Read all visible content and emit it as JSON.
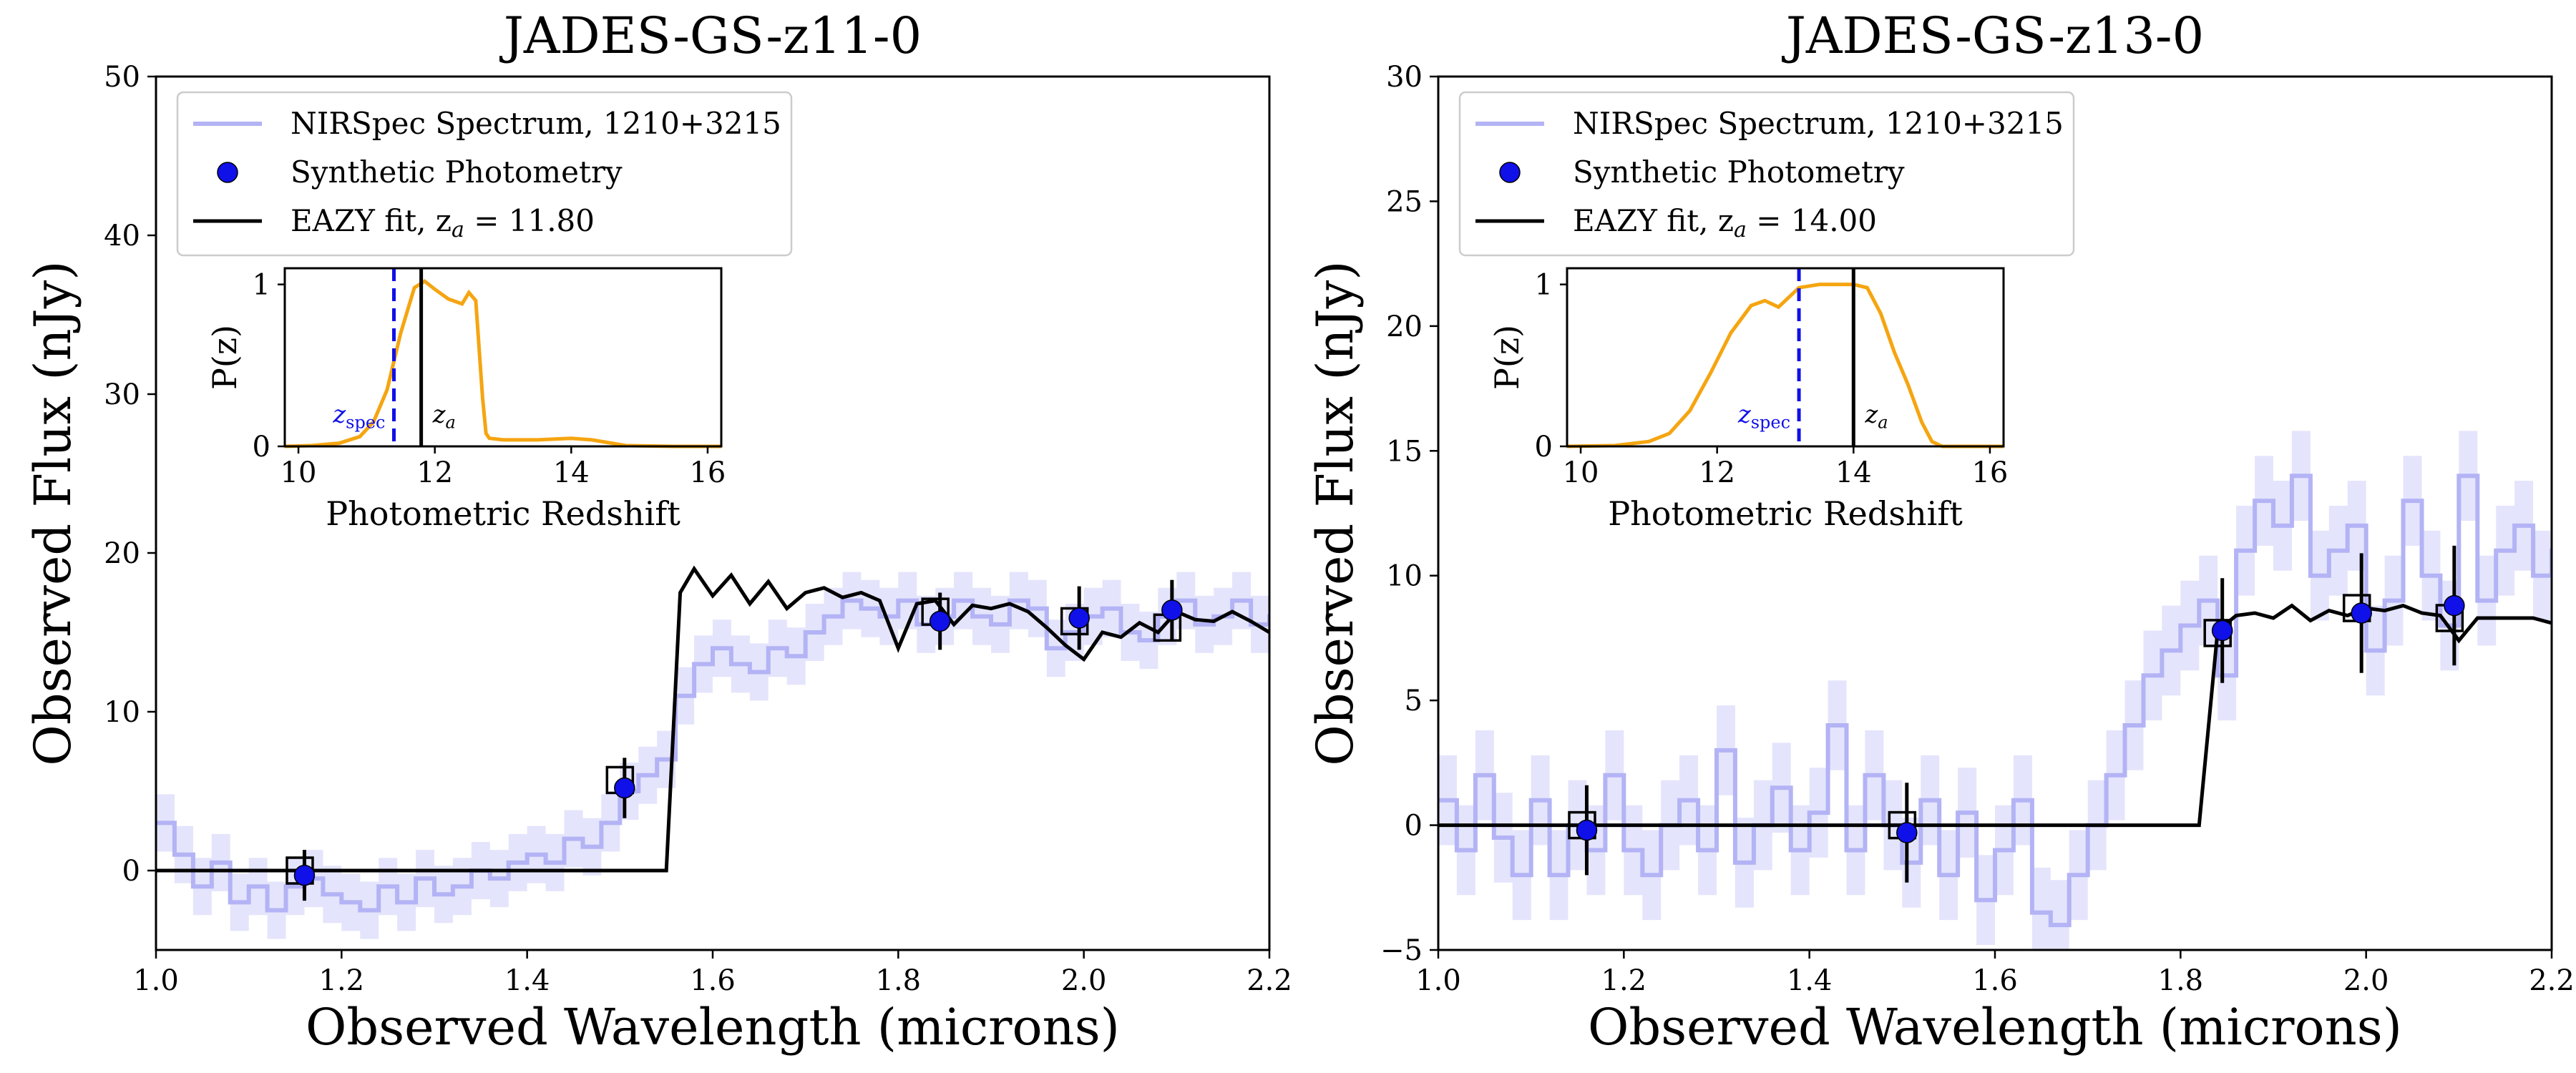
{
  "chart_data": [
    {
      "type": "line",
      "title": "JADES-GS-z11-0",
      "xlabel": "Observed Wavelength (microns)",
      "ylabel": "Observed Flux (nJy)",
      "xlim": [
        1.0,
        2.2
      ],
      "ylim": [
        -5,
        50
      ],
      "xticks": [
        1.0,
        1.2,
        1.4,
        1.6,
        1.8,
        2.0,
        2.2
      ],
      "xtick_labels": [
        "1.0",
        "1.2",
        "1.4",
        "1.6",
        "1.8",
        "2.0",
        "2.2"
      ],
      "yticks": [
        0,
        10,
        20,
        30,
        40,
        50
      ],
      "ytick_labels": [
        "0",
        "10",
        "20",
        "30",
        "40",
        "50"
      ],
      "legend": {
        "position": "top-left",
        "entries": [
          "NIRSpec Spectrum, 1210+3215",
          "Synthetic Photometry",
          "EAZY fit, z_a = 11.80"
        ]
      },
      "series": [
        {
          "name": "NIRSpec Spectrum, 1210+3215",
          "color": "#b3b3f5",
          "x": [
            1.0,
            1.02,
            1.04,
            1.06,
            1.08,
            1.1,
            1.12,
            1.14,
            1.16,
            1.18,
            1.2,
            1.22,
            1.24,
            1.26,
            1.28,
            1.3,
            1.32,
            1.34,
            1.36,
            1.38,
            1.4,
            1.42,
            1.44,
            1.46,
            1.48,
            1.5,
            1.52,
            1.54,
            1.56,
            1.58,
            1.6,
            1.62,
            1.64,
            1.66,
            1.68,
            1.7,
            1.72,
            1.74,
            1.76,
            1.78,
            1.8,
            1.82,
            1.84,
            1.86,
            1.88,
            1.9,
            1.92,
            1.94,
            1.96,
            1.98,
            2.0,
            2.02,
            2.04,
            2.06,
            2.08,
            2.1,
            2.12,
            2.14,
            2.16,
            2.18,
            2.2
          ],
          "y": [
            3,
            1,
            -1,
            0.5,
            -2,
            -1,
            -2.5,
            -1,
            -0.5,
            -1.5,
            -2,
            -2.5,
            -1,
            -2,
            -0.5,
            -1.5,
            -1,
            0,
            -0.5,
            0.5,
            1,
            0.5,
            2,
            1.5,
            3,
            5,
            6,
            7,
            11,
            13,
            14,
            13,
            12.5,
            14,
            13.5,
            15,
            16,
            17,
            16.5,
            16,
            17,
            15.5,
            16,
            17,
            16,
            15.5,
            17,
            16.5,
            14,
            15,
            16,
            16.5,
            15,
            14.5,
            16,
            17,
            15.5,
            16,
            17,
            15.5,
            16
          ]
        },
        {
          "name": "EAZY fit, z_a = 11.80",
          "color": "#000000",
          "x": [
            1.0,
            1.55,
            1.565,
            1.58,
            1.6,
            1.62,
            1.64,
            1.66,
            1.68,
            1.7,
            1.72,
            1.74,
            1.76,
            1.78,
            1.8,
            1.82,
            1.84,
            1.86,
            1.88,
            1.9,
            1.92,
            1.94,
            1.96,
            1.98,
            2.0,
            2.02,
            2.04,
            2.06,
            2.08,
            2.1,
            2.12,
            2.14,
            2.16,
            2.18,
            2.2
          ],
          "y": [
            0,
            0,
            17.5,
            19,
            17.3,
            18.6,
            16.8,
            18.2,
            16.5,
            17.5,
            17.8,
            17.2,
            17.5,
            17,
            14,
            16.8,
            17,
            15.5,
            16.7,
            16.5,
            16.8,
            16.3,
            15.3,
            14.2,
            13.3,
            15,
            14.7,
            15.6,
            15,
            16.3,
            15.8,
            15.7,
            16.3,
            15.7,
            15
          ]
        }
      ],
      "synthetic_photometry": {
        "x": [
          1.16,
          1.505,
          1.845,
          1.995,
          2.095
        ],
        "y": [
          -0.3,
          5.2,
          15.7,
          15.9,
          16.4
        ],
        "yerr": [
          1.6,
          1.9,
          1.8,
          2.0,
          1.9
        ]
      },
      "eazy_boxes": {
        "x": [
          1.155,
          1.5,
          1.84,
          1.99,
          2.09
        ],
        "y": [
          0,
          5.7,
          16.3,
          15.7,
          15.3
        ]
      },
      "inset": {
        "xlabel": "Photometric Redshift",
        "ylabel": "P(z)",
        "xlim": [
          9.8,
          16.2
        ],
        "ylim": [
          0,
          1.1
        ],
        "xticks": [
          10,
          12,
          14,
          16
        ],
        "xtick_labels": [
          "10",
          "12",
          "14",
          "16"
        ],
        "yticks": [
          0,
          1
        ],
        "ytick_labels": [
          "0",
          "1"
        ],
        "z_spec": 11.4,
        "z_a": 11.8,
        "z_spec_label": "z",
        "z_spec_sub": "spec",
        "z_a_label": "z",
        "z_a_sub": "a",
        "pz": {
          "color": "#f5a511",
          "x": [
            9.8,
            10.2,
            10.6,
            10.9,
            11.1,
            11.3,
            11.5,
            11.7,
            11.85,
            12.0,
            12.2,
            12.4,
            12.5,
            12.6,
            12.7,
            12.75,
            12.8,
            13.0,
            13.5,
            14.0,
            14.3,
            14.8,
            15.5,
            16.2
          ],
          "y": [
            0,
            0.005,
            0.02,
            0.06,
            0.15,
            0.35,
            0.7,
            0.98,
            1.02,
            0.97,
            0.91,
            0.88,
            0.95,
            0.9,
            0.3,
            0.08,
            0.05,
            0.04,
            0.04,
            0.05,
            0.04,
            0.005,
            0,
            0
          ]
        }
      }
    },
    {
      "type": "line",
      "title": "JADES-GS-z13-0",
      "xlabel": "Observed Wavelength (microns)",
      "ylabel": "Observed Flux (nJy)",
      "xlim": [
        1.0,
        2.2
      ],
      "ylim": [
        -5,
        30
      ],
      "xticks": [
        1.0,
        1.2,
        1.4,
        1.6,
        1.8,
        2.0,
        2.2
      ],
      "xtick_labels": [
        "1.0",
        "1.2",
        "1.4",
        "1.6",
        "1.8",
        "2.0",
        "2.2"
      ],
      "yticks": [
        -5,
        0,
        5,
        10,
        15,
        20,
        25,
        30
      ],
      "ytick_labels": [
        "−5",
        "0",
        "5",
        "10",
        "15",
        "20",
        "25",
        "30"
      ],
      "legend": {
        "position": "top-left",
        "entries": [
          "NIRSpec Spectrum, 1210+3215",
          "Synthetic Photometry",
          "EAZY fit, z_a = 14.00"
        ]
      },
      "series": [
        {
          "name": "NIRSpec Spectrum, 1210+3215",
          "color": "#b3b3f5",
          "x": [
            1.0,
            1.02,
            1.04,
            1.06,
            1.08,
            1.1,
            1.12,
            1.14,
            1.16,
            1.18,
            1.2,
            1.22,
            1.24,
            1.26,
            1.28,
            1.3,
            1.32,
            1.34,
            1.36,
            1.38,
            1.4,
            1.42,
            1.44,
            1.46,
            1.48,
            1.5,
            1.52,
            1.54,
            1.56,
            1.58,
            1.6,
            1.62,
            1.64,
            1.66,
            1.68,
            1.7,
            1.72,
            1.74,
            1.76,
            1.78,
            1.8,
            1.82,
            1.84,
            1.86,
            1.88,
            1.9,
            1.92,
            1.94,
            1.96,
            1.98,
            2.0,
            2.02,
            2.04,
            2.06,
            2.08,
            2.1,
            2.12,
            2.14,
            2.16,
            2.18,
            2.2
          ],
          "y": [
            1,
            -1,
            2,
            -0.5,
            -2,
            1,
            -2,
            0,
            -1,
            2,
            -1,
            -2,
            0,
            1,
            -1,
            3,
            -1.5,
            0,
            1.5,
            -1,
            0.5,
            4,
            -1,
            2,
            0,
            -1.5,
            1,
            -2,
            0.5,
            -3,
            -1,
            1,
            -3.5,
            -4,
            -2,
            0,
            2,
            4,
            6,
            7,
            8,
            9,
            6,
            11,
            13,
            12,
            14,
            10,
            11,
            12,
            7,
            9,
            13,
            10,
            8,
            14,
            9,
            11,
            12,
            10,
            11
          ]
        },
        {
          "name": "EAZY fit, z_a = 14.00",
          "color": "#000000",
          "x": [
            1.0,
            1.82,
            1.84,
            1.86,
            1.88,
            1.9,
            1.92,
            1.94,
            1.96,
            1.98,
            2.0,
            2.02,
            2.04,
            2.06,
            2.08,
            2.1,
            2.12,
            2.14,
            2.16,
            2.18,
            2.2
          ],
          "y": [
            0,
            0,
            7.8,
            8.4,
            8.5,
            8.3,
            8.8,
            8.2,
            8.6,
            8.4,
            8.7,
            8.6,
            8.8,
            8.5,
            8.4,
            7.4,
            8.3,
            8.3,
            8.3,
            8.3,
            8.1
          ]
        }
      ],
      "synthetic_photometry": {
        "x": [
          1.16,
          1.505,
          1.845,
          1.995,
          2.095
        ],
        "y": [
          -0.2,
          -0.3,
          7.8,
          8.5,
          8.8
        ],
        "yerr": [
          1.8,
          2.0,
          2.1,
          2.4,
          2.4
        ]
      },
      "eazy_boxes": {
        "x": [
          1.155,
          1.5,
          1.84,
          1.99,
          2.09
        ],
        "y": [
          0,
          0,
          7.7,
          8.7,
          8.3
        ]
      },
      "inset": {
        "xlabel": "Photometric Redshift",
        "ylabel": "P(z)",
        "xlim": [
          9.8,
          16.2
        ],
        "ylim": [
          0,
          1.1
        ],
        "xticks": [
          10,
          12,
          14,
          16
        ],
        "xtick_labels": [
          "10",
          "12",
          "14",
          "16"
        ],
        "yticks": [
          0,
          1
        ],
        "ytick_labels": [
          "0",
          "1"
        ],
        "z_spec": 13.2,
        "z_a": 14.0,
        "z_spec_label": "z",
        "z_spec_sub": "spec",
        "z_a_label": "z",
        "z_a_sub": "a",
        "pz": {
          "color": "#f5a511",
          "x": [
            9.8,
            10.5,
            11.0,
            11.3,
            11.6,
            11.9,
            12.2,
            12.5,
            12.7,
            12.9,
            13.05,
            13.2,
            13.5,
            14.0,
            14.2,
            14.4,
            14.6,
            14.8,
            15.0,
            15.15,
            15.3,
            16.2
          ],
          "y": [
            0,
            0.005,
            0.03,
            0.08,
            0.22,
            0.45,
            0.7,
            0.87,
            0.9,
            0.86,
            0.92,
            0.98,
            1.0,
            1.0,
            0.98,
            0.82,
            0.58,
            0.38,
            0.15,
            0.03,
            0,
            0
          ]
        }
      }
    }
  ]
}
